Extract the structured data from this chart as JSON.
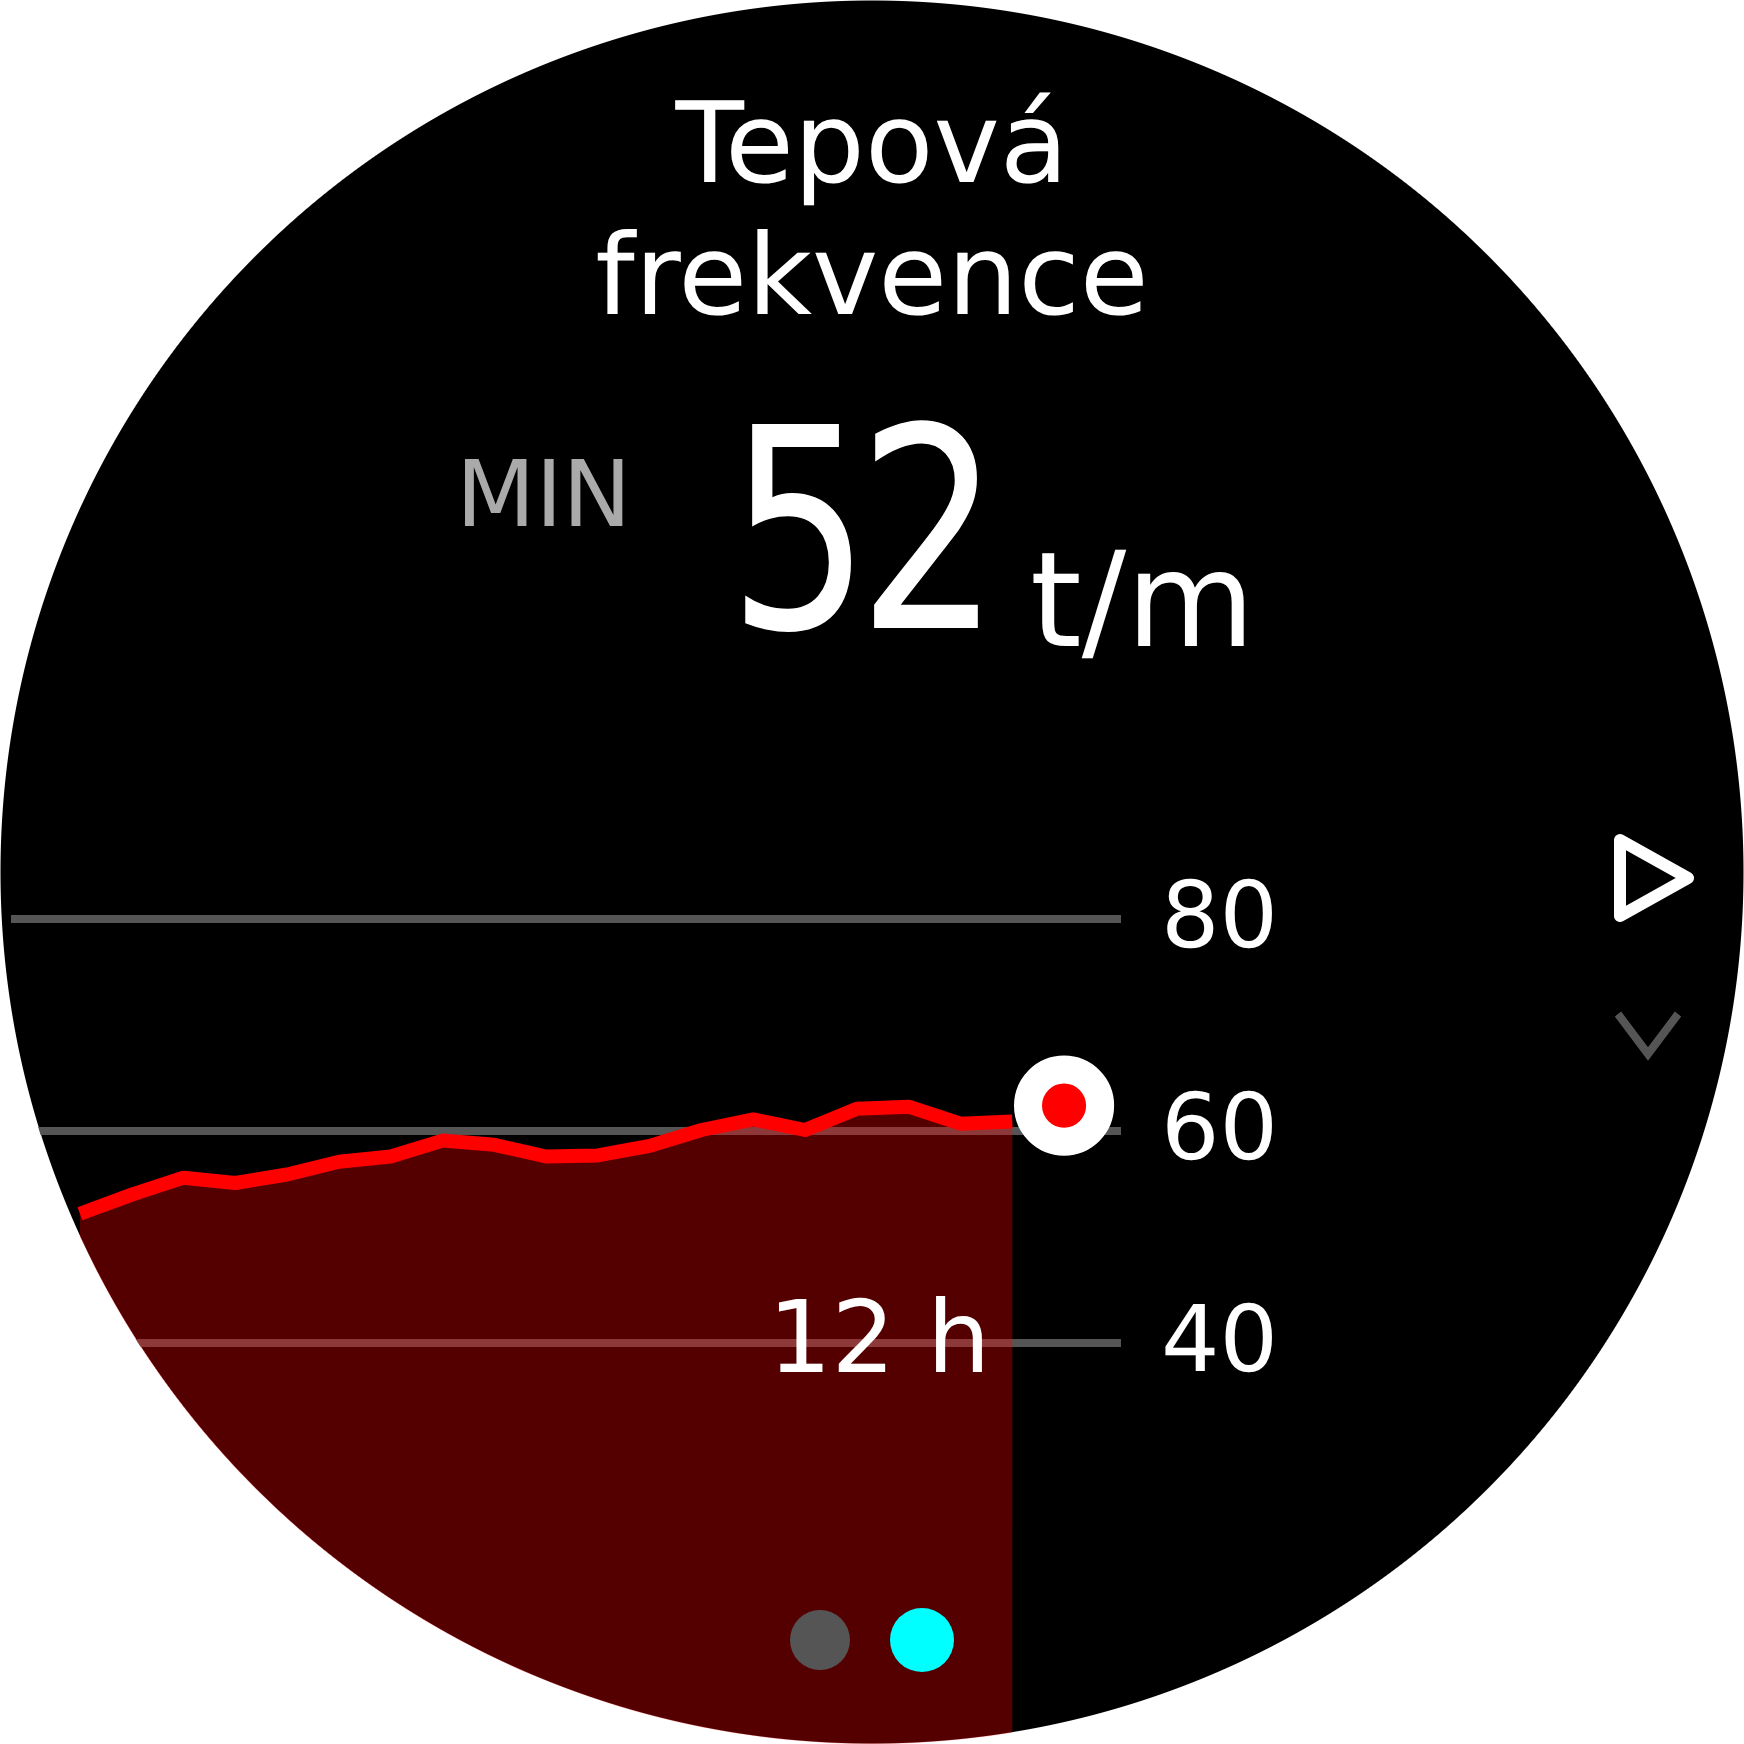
{
  "chart_data": {
    "type": "area",
    "title": "Tepová frekvence",
    "annotations": [
      "MIN",
      "52",
      "t/m",
      "12 h"
    ],
    "categories": [
      null,
      null,
      null,
      null,
      null,
      null,
      null,
      null,
      null,
      null,
      null,
      null,
      null,
      null,
      null,
      null,
      null,
      null,
      null,
      null
    ],
    "series": [
      {
        "color": "#ff0000",
        "values": [
          52.1,
          53.9,
          55.5,
          55.0,
          55.8,
          57.0,
          57.5,
          59.0,
          58.6,
          57.5,
          57.6,
          58.5,
          60.0,
          61.0,
          60.0,
          62.0,
          62.2,
          60.6,
          60.8,
          null
        ]
      },
      {
        "type": "scatter",
        "color": "#ff0000",
        "values": [
          null,
          null,
          null,
          null,
          null,
          null,
          null,
          null,
          null,
          null,
          null,
          null,
          null,
          null,
          null,
          null,
          null,
          null,
          null,
          62.3
        ]
      }
    ],
    "ylim": [
      0,
      80
    ],
    "yticks": [
      40,
      60,
      80
    ],
    "grid": "y",
    "tick_labels": "y",
    "line_style": "solid"
  }
}
